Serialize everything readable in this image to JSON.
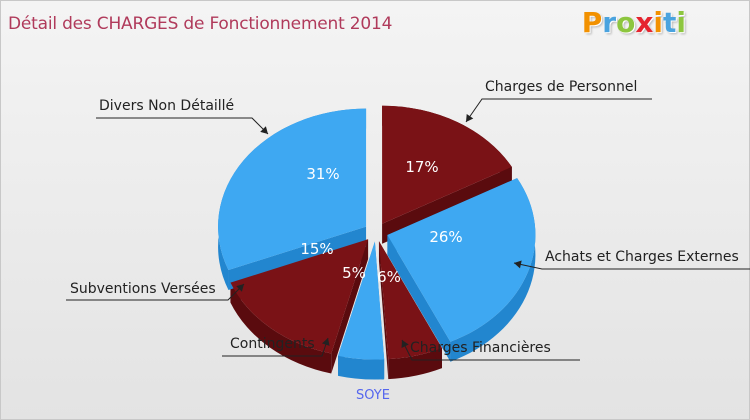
{
  "header": {
    "title": "Détail des CHARGES de Fonctionnement 2014",
    "logo_letters": [
      {
        "char": "P",
        "color": "#f29100"
      },
      {
        "char": "r",
        "color": "#4aa3df"
      },
      {
        "char": "o",
        "color": "#8dc63f"
      },
      {
        "char": "x",
        "color": "#e5242e"
      },
      {
        "char": "i",
        "color": "#f29100"
      },
      {
        "char": "t",
        "color": "#4aa3df"
      },
      {
        "char": "i",
        "color": "#8dc63f"
      }
    ]
  },
  "colors": {
    "blue": "#3ea8f2",
    "blue_dark": "#2286cf",
    "red": "#7a1216",
    "red_dark": "#5a0b0e",
    "title": "#b03a5b",
    "footer": "#5566ee"
  },
  "chart_data": {
    "type": "pie",
    "title": "Détail des CHARGES de Fonctionnement 2014",
    "footer": "SOYE",
    "slices": [
      {
        "label": "Charges de Personnel",
        "value": 17,
        "pct_label": "17%",
        "color": "red"
      },
      {
        "label": "Achats et Charges Externes",
        "value": 26,
        "pct_label": "26%",
        "color": "blue"
      },
      {
        "label": "Charges Financières",
        "value": 6,
        "pct_label": "6%",
        "color": "red"
      },
      {
        "label": "Contingents",
        "value": 5,
        "pct_label": "5%",
        "color": "blue"
      },
      {
        "label": "Subventions Versées",
        "value": 15,
        "pct_label": "15%",
        "color": "red"
      },
      {
        "label": "Divers Non Détaillé",
        "value": 31,
        "pct_label": "31%",
        "color": "blue"
      }
    ]
  }
}
